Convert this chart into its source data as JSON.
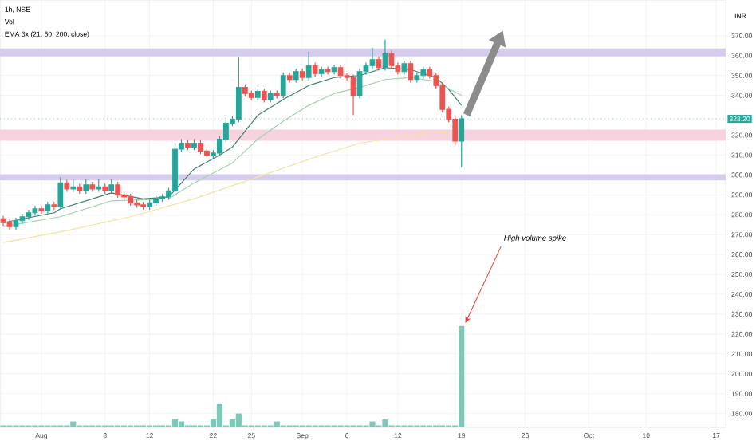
{
  "chart_data": {
    "type": "candlestick",
    "title": "1h, NSE",
    "ylabel": "INR",
    "annotations": [
      "Vol",
      "EMA 3x (21, 50, 200, close)",
      {
        "text": "High volume spike",
        "x": "19",
        "y": 224
      }
    ],
    "categories": [
      null,
      null,
      null,
      null,
      null,
      null,
      "Aug",
      null,
      null,
      null,
      null,
      null,
      null,
      null,
      null,
      null,
      "8",
      null,
      null,
      null,
      null,
      null,
      null,
      "12",
      null,
      null,
      null,
      null,
      null,
      null,
      null,
      null,
      null,
      "22",
      null,
      null,
      null,
      null,
      null,
      "25",
      null,
      null,
      null,
      null,
      null,
      null,
      null,
      "Sep",
      null,
      null,
      null,
      null,
      null,
      null,
      "6",
      null,
      null,
      null,
      null,
      null,
      null,
      null,
      "12",
      null,
      null,
      null,
      null,
      null,
      null,
      null,
      null,
      null,
      "19",
      null,
      null,
      null,
      null,
      null,
      null,
      null,
      null,
      null,
      "26",
      null,
      null,
      null,
      null,
      null,
      null,
      null,
      null,
      null,
      "Oct",
      null,
      null,
      null,
      null,
      null,
      null,
      null,
      null,
      "10",
      null,
      null,
      null,
      null,
      null,
      null,
      null,
      null,
      null,
      null,
      "17",
      null
    ],
    "ohlc": [
      [
        278,
        279.5,
        274.5,
        276
      ],
      [
        276,
        277.5,
        272.5,
        274
      ],
      [
        274,
        278.5,
        272.5,
        277
      ],
      [
        277,
        280.5,
        275.5,
        279
      ],
      [
        279,
        282.5,
        277.5,
        281
      ],
      [
        281,
        284.5,
        279.5,
        283
      ],
      [
        283,
        284.5,
        280.5,
        282
      ],
      [
        282,
        286.5,
        280.5,
        285
      ],
      [
        285,
        286.5,
        282.5,
        284
      ],
      [
        284,
        299,
        282.5,
        296
      ],
      [
        296,
        297.5,
        291.5,
        293
      ],
      [
        293,
        298,
        291.5,
        294
      ],
      [
        294,
        295.5,
        290.5,
        292
      ],
      [
        292,
        298,
        290.5,
        295
      ],
      [
        295,
        296.5,
        291.5,
        293
      ],
      [
        293,
        298,
        291.5,
        294
      ],
      [
        294,
        295.5,
        290.5,
        292
      ],
      [
        292,
        298,
        290.5,
        295
      ],
      [
        295,
        296.5,
        288.5,
        290
      ],
      [
        290,
        291.5,
        287.5,
        289
      ],
      [
        289,
        290.5,
        284.5,
        286
      ],
      [
        286,
        287.5,
        283.5,
        285
      ],
      [
        285,
        286.5,
        282.5,
        284
      ],
      [
        284,
        287.5,
        282.5,
        286
      ],
      [
        286,
        289.5,
        284.5,
        288
      ],
      [
        288,
        290.5,
        286.5,
        289
      ],
      [
        289,
        293.5,
        287.5,
        292
      ],
      [
        292,
        316,
        290.5,
        313
      ],
      [
        313,
        318,
        311.5,
        316
      ],
      [
        316,
        317.5,
        312.5,
        314
      ],
      [
        314,
        318,
        312.5,
        316
      ],
      [
        316,
        317.5,
        310.5,
        312
      ],
      [
        312,
        313.5,
        308.5,
        310
      ],
      [
        310,
        312.5,
        308.5,
        311
      ],
      [
        311,
        319.5,
        309.5,
        318
      ],
      [
        318,
        329,
        316.5,
        326
      ],
      [
        326,
        329.5,
        324.5,
        328
      ],
      [
        328,
        359,
        326.5,
        344
      ],
      [
        344,
        345.5,
        339.5,
        341
      ],
      [
        341,
        342.5,
        337.5,
        339
      ],
      [
        339,
        343.5,
        337.5,
        342
      ],
      [
        342,
        343.5,
        336.5,
        338
      ],
      [
        338,
        342.5,
        336.5,
        341
      ],
      [
        341,
        342.5,
        338.5,
        340
      ],
      [
        340,
        351.5,
        338.5,
        350
      ],
      [
        350,
        351.5,
        346.5,
        348
      ],
      [
        348,
        353.5,
        346.5,
        352
      ],
      [
        352,
        353.5,
        347.5,
        349
      ],
      [
        349,
        362,
        347.5,
        355
      ],
      [
        355,
        356.5,
        349.5,
        351
      ],
      [
        351,
        354.5,
        349.5,
        353
      ],
      [
        353,
        354.5,
        350.5,
        352
      ],
      [
        352,
        355.5,
        350.5,
        354
      ],
      [
        354,
        355.5,
        348.5,
        350
      ],
      [
        350,
        351.5,
        347.5,
        349
      ],
      [
        349,
        350.5,
        330,
        340
      ],
      [
        340,
        353.5,
        338.5,
        352
      ],
      [
        352,
        356.5,
        350.5,
        355
      ],
      [
        355,
        364,
        353.5,
        358
      ],
      [
        358,
        359.5,
        352.5,
        354
      ],
      [
        354,
        368,
        352.5,
        361
      ],
      [
        361,
        362.5,
        353.5,
        355
      ],
      [
        355,
        356.5,
        350.5,
        352
      ],
      [
        352,
        357.5,
        350.5,
        356
      ],
      [
        356,
        357.5,
        346.5,
        348
      ],
      [
        348,
        351.5,
        346.5,
        350
      ],
      [
        350,
        354.5,
        348.5,
        353
      ],
      [
        353,
        354.5,
        348.5,
        350
      ],
      [
        350,
        351.5,
        343.5,
        345
      ],
      [
        345,
        346.5,
        331.5,
        333
      ],
      [
        333,
        334.5,
        326.5,
        328
      ],
      [
        328,
        329.5,
        315,
        317
      ],
      [
        317,
        330,
        304,
        328.2
      ],
      null,
      null,
      null,
      null,
      null,
      null,
      null,
      null,
      null,
      null,
      null,
      null,
      null,
      null,
      null,
      null,
      null,
      null,
      null,
      null,
      null,
      null,
      null,
      null,
      null,
      null,
      null,
      null,
      null,
      null,
      null,
      null,
      null,
      null,
      null,
      null,
      null,
      null,
      null,
      null,
      null
    ],
    "colors": [
      "#ef5350",
      "#ef5350",
      "#26a69a",
      "#26a69a",
      "#26a69a",
      "#26a69a",
      "#ef5350",
      "#26a69a",
      "#ef5350",
      "#26a69a",
      "#ef5350",
      "#26a69a",
      "#ef5350",
      "#26a69a",
      "#ef5350",
      "#26a69a",
      "#ef5350",
      "#26a69a",
      "#ef5350",
      "#ef5350",
      "#ef5350",
      "#ef5350",
      "#ef5350",
      "#26a69a",
      "#26a69a",
      "#26a69a",
      "#26a69a",
      "#26a69a",
      "#26a69a",
      "#ef5350",
      "#26a69a",
      "#ef5350",
      "#ef5350",
      "#26a69a",
      "#26a69a",
      "#26a69a",
      "#26a69a",
      "#26a69a",
      "#ef5350",
      "#ef5350",
      "#26a69a",
      "#ef5350",
      "#26a69a",
      "#ef5350",
      "#26a69a",
      "#ef5350",
      "#26a69a",
      "#ef5350",
      "#26a69a",
      "#ef5350",
      "#26a69a",
      "#ef5350",
      "#26a69a",
      "#ef5350",
      "#ef5350",
      "#ef5350",
      "#26a69a",
      "#26a69a",
      "#26a69a",
      "#ef5350",
      "#26a69a",
      "#ef5350",
      "#ef5350",
      "#26a69a",
      "#ef5350",
      "#26a69a",
      "#26a69a",
      "#ef5350",
      "#ef5350",
      "#ef5350",
      "#ef5350",
      "#ef5350",
      "#26a69a",
      null,
      null,
      null,
      null,
      null,
      null,
      null,
      null,
      null,
      null,
      null,
      null,
      null,
      null,
      null,
      null,
      null,
      null,
      null,
      null,
      null,
      null,
      null,
      null,
      null,
      null,
      null,
      null,
      null,
      null,
      null,
      null,
      null,
      null,
      null,
      null,
      null,
      null,
      null,
      null,
      null
    ],
    "series": [
      {
        "type": "bar",
        "color": "#7fc8b8",
        "values": [
          174,
          174,
          174,
          174,
          174,
          174,
          174,
          174,
          174,
          174,
          174,
          176,
          174,
          174,
          174,
          174,
          174,
          174,
          174,
          174,
          174,
          174,
          174,
          174,
          174,
          174,
          174,
          177,
          176,
          174,
          174,
          174,
          174,
          177,
          185,
          174,
          177,
          180,
          174,
          174,
          174,
          174,
          174,
          176,
          174,
          174,
          174,
          174,
          174,
          174,
          174,
          174,
          174,
          174,
          174,
          174,
          174,
          174,
          176,
          174,
          177,
          174,
          174,
          174,
          174,
          174,
          174,
          174,
          174,
          174,
          174,
          174,
          224,
          null,
          null,
          null,
          null,
          null,
          null,
          null,
          null,
          null,
          null,
          null,
          null,
          null,
          null,
          null,
          null,
          null,
          null,
          null,
          null,
          null,
          null,
          null,
          null,
          null,
          null,
          null,
          null,
          null,
          null,
          null,
          null,
          null,
          null,
          null,
          null,
          null,
          null,
          null,
          null,
          null
        ]
      },
      {
        "type": "line",
        "color": "#3d7f70",
        "values": [
          276,
          null,
          null,
          null,
          null,
          null,
          null,
          null,
          281,
          283,
          null,
          null,
          null,
          null,
          null,
          null,
          null,
          291,
          null,
          null,
          null,
          null,
          288,
          null,
          null,
          null,
          289,
          null,
          null,
          null,
          303,
          null,
          null,
          null,
          310,
          null,
          314,
          null,
          null,
          null,
          330,
          null,
          null,
          null,
          338,
          null,
          null,
          null,
          345,
          null,
          null,
          null,
          349,
          null,
          null,
          null,
          350,
          null,
          null,
          null,
          354,
          null,
          null,
          null,
          353,
          null,
          null,
          null,
          349,
          null,
          343,
          null,
          335,
          null,
          null,
          null,
          null,
          null,
          null,
          null,
          null,
          null,
          null,
          null,
          null,
          null,
          null,
          null,
          null,
          null,
          null,
          null,
          null,
          null,
          null,
          null,
          null,
          null,
          null,
          null,
          null,
          null,
          null,
          null,
          null,
          null,
          null,
          null,
          null,
          null,
          null,
          null,
          null,
          null
        ]
      },
      {
        "type": "line",
        "color": "#9fd3b0",
        "values": [
          274,
          null,
          null,
          null,
          null,
          null,
          null,
          null,
          null,
          279,
          null,
          null,
          null,
          null,
          null,
          null,
          null,
          287,
          null,
          null,
          null,
          null,
          null,
          null,
          null,
          null,
          288,
          null,
          null,
          null,
          296,
          null,
          null,
          null,
          null,
          null,
          306,
          null,
          null,
          null,
          318,
          null,
          null,
          null,
          327,
          null,
          null,
          null,
          335,
          null,
          null,
          null,
          341,
          null,
          null,
          null,
          344,
          null,
          null,
          null,
          348,
          null,
          null,
          null,
          349,
          null,
          null,
          null,
          347,
          null,
          null,
          null,
          340,
          null,
          null,
          null,
          null,
          null,
          null,
          null,
          null,
          null,
          null,
          null,
          null,
          null,
          null,
          null,
          null,
          null,
          null,
          null,
          null,
          null,
          null,
          null,
          null,
          null,
          null,
          null,
          null,
          null,
          null,
          null,
          null,
          null,
          null,
          null,
          null,
          null,
          null,
          null,
          null,
          null
        ]
      },
      {
        "type": "line",
        "color": "#f3e3a0",
        "values": [
          266,
          null,
          null,
          null,
          null,
          null,
          null,
          null,
          null,
          null,
          272,
          null,
          null,
          null,
          null,
          null,
          null,
          null,
          null,
          null,
          279,
          null,
          null,
          null,
          null,
          null,
          null,
          null,
          null,
          null,
          288,
          null,
          null,
          null,
          null,
          null,
          null,
          null,
          null,
          null,
          299,
          null,
          null,
          null,
          null,
          null,
          null,
          null,
          null,
          null,
          310,
          null,
          null,
          null,
          null,
          null,
          316,
          null,
          null,
          null,
          null,
          null,
          null,
          null,
          320,
          null,
          null,
          null,
          null,
          null,
          null,
          null,
          322,
          null,
          null,
          null,
          null,
          null,
          null,
          null,
          null,
          null,
          null,
          null,
          null,
          null,
          null,
          null,
          null,
          null,
          null,
          null,
          null,
          null,
          null,
          null,
          null,
          null,
          null,
          null,
          null,
          null,
          null,
          null,
          null,
          null,
          null,
          null,
          null,
          null,
          null,
          null,
          null,
          null
        ]
      }
    ],
    "bands": [
      {
        "axis": "y",
        "from": 359.6,
        "to": 363.6,
        "color": "#d6ccec"
      },
      {
        "axis": "y",
        "from": 317.2,
        "to": 322.8,
        "color": "#f6d3df"
      },
      {
        "axis": "y",
        "from": 297.2,
        "to": 300.4,
        "color": "#d6ccec"
      }
    ],
    "ref_lines": [
      {
        "axis": "y",
        "value": 328.2,
        "label": "328.20",
        "color": "#26a69a",
        "line_style": "dotted"
      }
    ],
    "ylim": [
      173,
      388
    ],
    "yticks": [
      {
        "value": 180,
        "label": "180.00"
      },
      {
        "value": 190,
        "label": "190.00"
      },
      {
        "value": 200,
        "label": "200.00"
      },
      {
        "value": 210,
        "label": "210.00"
      },
      {
        "value": 220,
        "label": "220.00"
      },
      {
        "value": 230,
        "label": "230.00"
      },
      {
        "value": 240,
        "label": "240.00"
      },
      {
        "value": 250,
        "label": "250.00"
      },
      {
        "value": 260,
        "label": "260.00"
      },
      {
        "value": 270,
        "label": "270.00"
      },
      {
        "value": 280,
        "label": "280.00"
      },
      {
        "value": 290,
        "label": "290.00"
      },
      {
        "value": 300,
        "label": "300.00"
      },
      {
        "value": 310,
        "label": "310.00"
      },
      {
        "value": 320,
        "label": "320.00"
      },
      {
        "value": 340,
        "label": "340.00"
      },
      {
        "value": 350,
        "label": "350.00"
      },
      {
        "value": 360,
        "label": "360.00"
      },
      {
        "value": 370,
        "label": "370.00"
      }
    ],
    "grid": true,
    "marker": "none"
  }
}
